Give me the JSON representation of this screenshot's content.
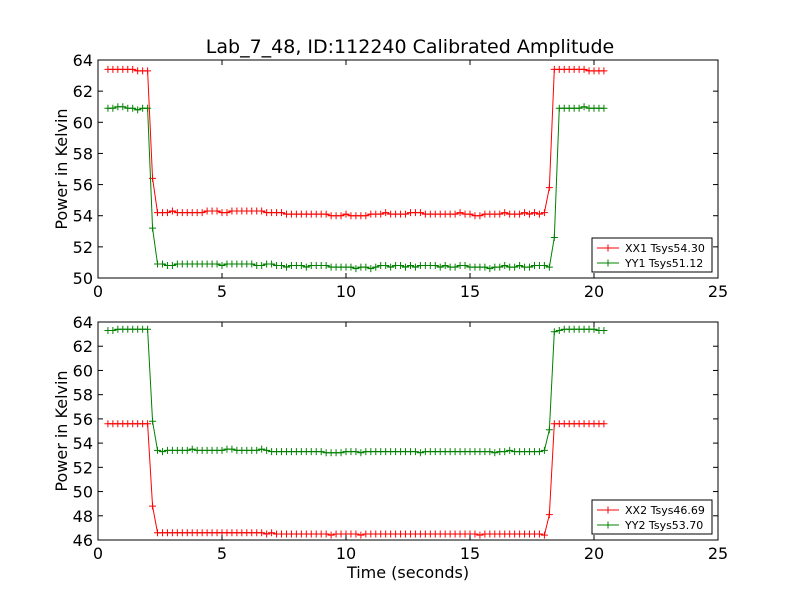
{
  "title": "Lab_7_48, ID:112240 Calibrated Amplitude",
  "chart_data": [
    {
      "type": "line",
      "title": "Lab_7_48, ID:112240 Calibrated Amplitude",
      "xlabel": "",
      "ylabel": "Power in Kelvin",
      "xlim": [
        0,
        25
      ],
      "ylim": [
        50,
        64
      ],
      "xticks": [
        0,
        5,
        10,
        15,
        20,
        25
      ],
      "yticks": [
        50,
        52,
        54,
        56,
        58,
        60,
        62,
        64
      ],
      "xtick_labels": [
        "0",
        "5",
        "10",
        "15",
        "20",
        "25"
      ],
      "ytick_labels": [
        "50",
        "52",
        "54",
        "56",
        "58",
        "60",
        "62",
        "64"
      ],
      "grid": false,
      "legend_position": "lower-right",
      "series": [
        {
          "name": "XX1 Tsys54.30",
          "color": "#ff0000",
          "x": [
            0.4,
            0.6,
            0.8,
            1.0,
            1.2,
            1.4,
            1.6,
            1.8,
            2.0,
            2.2,
            2.4,
            2.6,
            2.8,
            3.0,
            3.2,
            3.4,
            3.6,
            3.8,
            4.0,
            4.2,
            4.4,
            4.6,
            4.8,
            5.0,
            5.2,
            5.4,
            5.6,
            5.8,
            6.0,
            6.2,
            6.4,
            6.6,
            6.8,
            7.0,
            7.2,
            7.4,
            7.6,
            7.8,
            8.0,
            8.2,
            8.4,
            8.6,
            8.8,
            9.0,
            9.2,
            9.4,
            9.6,
            9.8,
            10.0,
            10.2,
            10.4,
            10.6,
            10.8,
            11.0,
            11.2,
            11.4,
            11.6,
            11.8,
            12.0,
            12.2,
            12.4,
            12.6,
            12.8,
            13.0,
            13.2,
            13.4,
            13.6,
            13.8,
            14.0,
            14.2,
            14.4,
            14.6,
            14.8,
            15.0,
            15.2,
            15.4,
            15.6,
            15.8,
            16.0,
            16.2,
            16.4,
            16.6,
            16.8,
            17.0,
            17.2,
            17.4,
            17.6,
            17.8,
            18.0,
            18.2,
            18.4,
            18.6,
            18.8,
            19.0,
            19.2,
            19.4,
            19.6,
            19.8,
            20.0,
            20.2,
            20.4
          ],
          "values": [
            63.4,
            63.4,
            63.4,
            63.4,
            63.4,
            63.4,
            63.3,
            63.3,
            63.3,
            56.4,
            54.2,
            54.2,
            54.2,
            54.3,
            54.2,
            54.2,
            54.2,
            54.2,
            54.2,
            54.2,
            54.3,
            54.3,
            54.3,
            54.2,
            54.2,
            54.3,
            54.3,
            54.3,
            54.3,
            54.3,
            54.3,
            54.3,
            54.2,
            54.2,
            54.2,
            54.2,
            54.1,
            54.1,
            54.1,
            54.1,
            54.1,
            54.1,
            54.1,
            54.1,
            54.1,
            54.0,
            54.0,
            54.0,
            54.1,
            54.0,
            54.0,
            54.0,
            54.0,
            54.1,
            54.1,
            54.1,
            54.2,
            54.1,
            54.1,
            54.1,
            54.1,
            54.2,
            54.2,
            54.2,
            54.1,
            54.1,
            54.1,
            54.1,
            54.1,
            54.1,
            54.1,
            54.2,
            54.1,
            54.1,
            54.0,
            54.0,
            54.1,
            54.1,
            54.1,
            54.1,
            54.2,
            54.1,
            54.1,
            54.1,
            54.2,
            54.1,
            54.2,
            54.1,
            54.2,
            55.8,
            63.4,
            63.4,
            63.4,
            63.4,
            63.4,
            63.4,
            63.4,
            63.3,
            63.3,
            63.3,
            63.3
          ]
        },
        {
          "name": "YY1 Tsys51.12",
          "color": "#008000",
          "x": [
            0.4,
            0.6,
            0.8,
            1.0,
            1.2,
            1.4,
            1.6,
            1.8,
            2.0,
            2.2,
            2.4,
            2.6,
            2.8,
            3.0,
            3.2,
            3.4,
            3.6,
            3.8,
            4.0,
            4.2,
            4.4,
            4.6,
            4.8,
            5.0,
            5.2,
            5.4,
            5.6,
            5.8,
            6.0,
            6.2,
            6.4,
            6.6,
            6.8,
            7.0,
            7.2,
            7.4,
            7.6,
            7.8,
            8.0,
            8.2,
            8.4,
            8.6,
            8.8,
            9.0,
            9.2,
            9.4,
            9.6,
            9.8,
            10.0,
            10.2,
            10.4,
            10.6,
            10.8,
            11.0,
            11.2,
            11.4,
            11.6,
            11.8,
            12.0,
            12.2,
            12.4,
            12.6,
            12.8,
            13.0,
            13.2,
            13.4,
            13.6,
            13.8,
            14.0,
            14.2,
            14.4,
            14.6,
            14.8,
            15.0,
            15.2,
            15.4,
            15.6,
            15.8,
            16.0,
            16.2,
            16.4,
            16.6,
            16.8,
            17.0,
            17.2,
            17.4,
            17.6,
            17.8,
            18.0,
            18.2,
            18.4,
            18.6,
            18.8,
            19.0,
            19.2,
            19.4,
            19.6,
            19.8,
            20.0,
            20.2,
            20.4
          ],
          "values": [
            60.9,
            60.9,
            61.0,
            61.0,
            60.9,
            60.9,
            60.8,
            60.9,
            60.9,
            53.2,
            50.9,
            50.9,
            50.8,
            50.8,
            50.9,
            50.9,
            50.9,
            50.9,
            50.9,
            50.9,
            50.9,
            50.9,
            50.9,
            50.8,
            50.9,
            50.9,
            50.9,
            50.9,
            50.9,
            50.9,
            50.8,
            50.8,
            50.9,
            50.9,
            50.8,
            50.8,
            50.7,
            50.8,
            50.8,
            50.8,
            50.7,
            50.8,
            50.8,
            50.8,
            50.8,
            50.7,
            50.7,
            50.7,
            50.7,
            50.7,
            50.6,
            50.7,
            50.7,
            50.6,
            50.7,
            50.8,
            50.8,
            50.7,
            50.8,
            50.8,
            50.7,
            50.8,
            50.7,
            50.8,
            50.8,
            50.8,
            50.8,
            50.7,
            50.8,
            50.7,
            50.7,
            50.8,
            50.8,
            50.7,
            50.7,
            50.7,
            50.7,
            50.6,
            50.7,
            50.7,
            50.8,
            50.7,
            50.7,
            50.8,
            50.7,
            50.7,
            50.8,
            50.8,
            50.8,
            50.7,
            52.6,
            60.9,
            60.9,
            60.9,
            60.9,
            60.9,
            61.0,
            60.9,
            60.9,
            60.9,
            60.9
          ]
        }
      ]
    },
    {
      "type": "line",
      "title": "",
      "xlabel": "Time (seconds)",
      "ylabel": "Power in Kelvin",
      "xlim": [
        0,
        25
      ],
      "ylim": [
        46,
        64
      ],
      "xticks": [
        0,
        5,
        10,
        15,
        20,
        25
      ],
      "yticks": [
        46,
        48,
        50,
        52,
        54,
        56,
        58,
        60,
        62,
        64
      ],
      "xtick_labels": [
        "0",
        "5",
        "10",
        "15",
        "20",
        "25"
      ],
      "ytick_labels": [
        "46",
        "48",
        "50",
        "52",
        "54",
        "56",
        "58",
        "60",
        "62",
        "64"
      ],
      "grid": false,
      "legend_position": "lower-right",
      "series": [
        {
          "name": "XX2 Tsys46.69",
          "color": "#ff0000",
          "x": [
            0.4,
            0.6,
            0.8,
            1.0,
            1.2,
            1.4,
            1.6,
            1.8,
            2.0,
            2.2,
            2.4,
            2.6,
            2.8,
            3.0,
            3.2,
            3.4,
            3.6,
            3.8,
            4.0,
            4.2,
            4.4,
            4.6,
            4.8,
            5.0,
            5.2,
            5.4,
            5.6,
            5.8,
            6.0,
            6.2,
            6.4,
            6.6,
            6.8,
            7.0,
            7.2,
            7.4,
            7.6,
            7.8,
            8.0,
            8.2,
            8.4,
            8.6,
            8.8,
            9.0,
            9.2,
            9.4,
            9.6,
            9.8,
            10.0,
            10.2,
            10.4,
            10.6,
            10.8,
            11.0,
            11.2,
            11.4,
            11.6,
            11.8,
            12.0,
            12.2,
            12.4,
            12.6,
            12.8,
            13.0,
            13.2,
            13.4,
            13.6,
            13.8,
            14.0,
            14.2,
            14.4,
            14.6,
            14.8,
            15.0,
            15.2,
            15.4,
            15.6,
            15.8,
            16.0,
            16.2,
            16.4,
            16.6,
            16.8,
            17.0,
            17.2,
            17.4,
            17.6,
            17.8,
            18.0,
            18.2,
            18.4,
            18.6,
            18.8,
            19.0,
            19.2,
            19.4,
            19.6,
            19.8,
            20.0,
            20.2,
            20.4
          ],
          "values": [
            55.6,
            55.6,
            55.6,
            55.6,
            55.6,
            55.6,
            55.6,
            55.6,
            55.6,
            48.8,
            46.6,
            46.6,
            46.6,
            46.6,
            46.6,
            46.6,
            46.6,
            46.6,
            46.6,
            46.6,
            46.6,
            46.6,
            46.6,
            46.6,
            46.6,
            46.6,
            46.6,
            46.6,
            46.6,
            46.6,
            46.6,
            46.6,
            46.5,
            46.6,
            46.5,
            46.5,
            46.5,
            46.5,
            46.5,
            46.5,
            46.5,
            46.5,
            46.5,
            46.5,
            46.5,
            46.4,
            46.5,
            46.5,
            46.5,
            46.5,
            46.5,
            46.4,
            46.5,
            46.5,
            46.5,
            46.5,
            46.5,
            46.5,
            46.5,
            46.5,
            46.5,
            46.5,
            46.5,
            46.5,
            46.5,
            46.5,
            46.5,
            46.5,
            46.5,
            46.5,
            46.5,
            46.5,
            46.5,
            46.5,
            46.5,
            46.4,
            46.5,
            46.5,
            46.5,
            46.5,
            46.5,
            46.5,
            46.5,
            46.5,
            46.5,
            46.5,
            46.5,
            46.5,
            46.4,
            48.1,
            55.6,
            55.6,
            55.6,
            55.6,
            55.6,
            55.6,
            55.6,
            55.6,
            55.6,
            55.6,
            55.6
          ]
        },
        {
          "name": "YY2 Tsys53.70",
          "color": "#008000",
          "x": [
            0.4,
            0.6,
            0.8,
            1.0,
            1.2,
            1.4,
            1.6,
            1.8,
            2.0,
            2.2,
            2.4,
            2.6,
            2.8,
            3.0,
            3.2,
            3.4,
            3.6,
            3.8,
            4.0,
            4.2,
            4.4,
            4.6,
            4.8,
            5.0,
            5.2,
            5.4,
            5.6,
            5.8,
            6.0,
            6.2,
            6.4,
            6.6,
            6.8,
            7.0,
            7.2,
            7.4,
            7.6,
            7.8,
            8.0,
            8.2,
            8.4,
            8.6,
            8.8,
            9.0,
            9.2,
            9.4,
            9.6,
            9.8,
            10.0,
            10.2,
            10.4,
            10.6,
            10.8,
            11.0,
            11.2,
            11.4,
            11.6,
            11.8,
            12.0,
            12.2,
            12.4,
            12.6,
            12.8,
            13.0,
            13.2,
            13.4,
            13.6,
            13.8,
            14.0,
            14.2,
            14.4,
            14.6,
            14.8,
            15.0,
            15.2,
            15.4,
            15.6,
            15.8,
            16.0,
            16.2,
            16.4,
            16.6,
            16.8,
            17.0,
            17.2,
            17.4,
            17.6,
            17.8,
            18.0,
            18.2,
            18.4,
            18.6,
            18.8,
            19.0,
            19.2,
            19.4,
            19.6,
            19.8,
            20.0,
            20.2,
            20.4
          ],
          "values": [
            63.3,
            63.3,
            63.4,
            63.4,
            63.4,
            63.4,
            63.4,
            63.4,
            63.4,
            55.8,
            53.4,
            53.3,
            53.4,
            53.4,
            53.4,
            53.4,
            53.4,
            53.5,
            53.4,
            53.4,
            53.4,
            53.4,
            53.4,
            53.4,
            53.5,
            53.5,
            53.4,
            53.4,
            53.4,
            53.4,
            53.4,
            53.5,
            53.4,
            53.3,
            53.3,
            53.3,
            53.3,
            53.3,
            53.3,
            53.3,
            53.3,
            53.3,
            53.3,
            53.3,
            53.2,
            53.2,
            53.2,
            53.2,
            53.3,
            53.3,
            53.3,
            53.2,
            53.3,
            53.3,
            53.3,
            53.3,
            53.3,
            53.3,
            53.3,
            53.3,
            53.3,
            53.3,
            53.3,
            53.2,
            53.3,
            53.3,
            53.3,
            53.3,
            53.3,
            53.3,
            53.3,
            53.3,
            53.3,
            53.3,
            53.3,
            53.3,
            53.3,
            53.3,
            53.2,
            53.3,
            53.3,
            53.4,
            53.3,
            53.3,
            53.3,
            53.3,
            53.3,
            53.3,
            53.4,
            55.1,
            63.2,
            63.3,
            63.4,
            63.4,
            63.4,
            63.4,
            63.4,
            63.4,
            63.4,
            63.3,
            63.3
          ]
        }
      ]
    }
  ]
}
